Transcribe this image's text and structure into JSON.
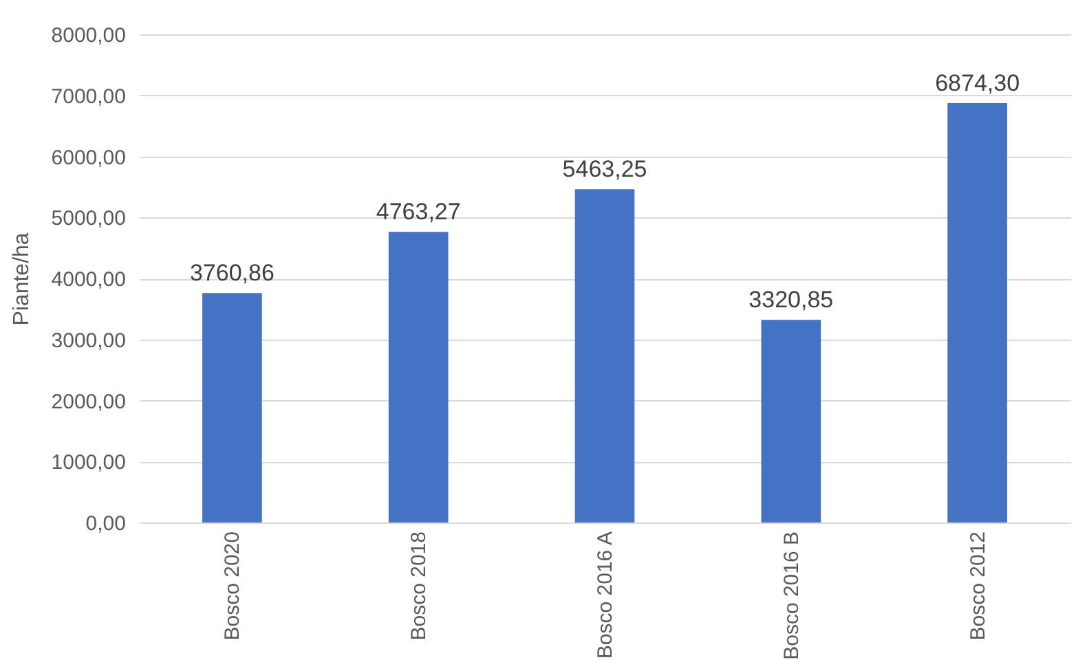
{
  "chart_data": {
    "type": "bar",
    "ylabel": "Piante/ha",
    "categories": [
      "Bosco 2020",
      "Bosco 2018",
      "Bosco 2016 A",
      "Bosco 2016 B",
      "Bosco 2012"
    ],
    "values": [
      3760.86,
      4763.27,
      5463.25,
      3320.85,
      6874.3
    ],
    "value_labels": [
      "3760,86",
      "4763,27",
      "5463,25",
      "3320,85",
      "6874,30"
    ],
    "color": "#4472c4",
    "ylim": [
      0,
      8000
    ],
    "yticks": [
      {
        "value": 0,
        "label": "0,00"
      },
      {
        "value": 1000,
        "label": "1000,00"
      },
      {
        "value": 2000,
        "label": "2000,00"
      },
      {
        "value": 3000,
        "label": "3000,00"
      },
      {
        "value": 4000,
        "label": "4000,00"
      },
      {
        "value": 5000,
        "label": "5000,00"
      },
      {
        "value": 6000,
        "label": "6000,00"
      },
      {
        "value": 7000,
        "label": "7000,00"
      },
      {
        "value": 8000,
        "label": "8000,00"
      }
    ],
    "grid": "y"
  }
}
